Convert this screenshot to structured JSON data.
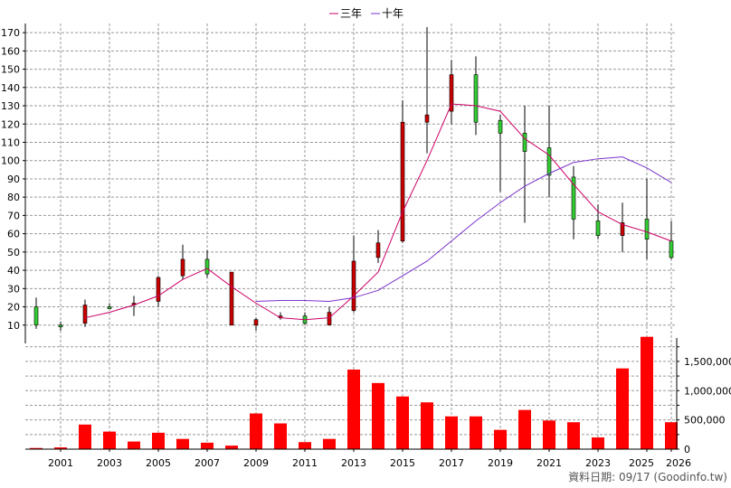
{
  "chart_data": {
    "type": "candlestick+bar",
    "legend": [
      {
        "name": "三年",
        "color": "#cc0066"
      },
      {
        "name": "十年",
        "color": "#7a33cc"
      }
    ],
    "price_axis": {
      "ylim": [
        0,
        175
      ],
      "ticks": [
        10,
        20,
        30,
        40,
        50,
        60,
        70,
        80,
        90,
        100,
        110,
        120,
        130,
        140,
        150,
        160,
        170
      ]
    },
    "volume_axis": {
      "ylim": [
        0,
        1900000
      ],
      "ticks": [
        0,
        500000,
        1000000,
        1500000
      ],
      "tick_labels": [
        "0",
        "500,000",
        "1,000,000",
        "1,500,000"
      ]
    },
    "x_axis": {
      "labels": [
        "2001",
        "2003",
        "2005",
        "2007",
        "2009",
        "2011",
        "2013",
        "2015",
        "2017",
        "2019",
        "2021",
        "2023",
        "2025",
        "2026"
      ]
    },
    "years": [
      2000,
      2001,
      2002,
      2003,
      2004,
      2005,
      2006,
      2007,
      2008,
      2009,
      2010,
      2011,
      2012,
      2013,
      2014,
      2015,
      2016,
      2017,
      2018,
      2019,
      2020,
      2021,
      2022,
      2023,
      2024,
      2025,
      2026
    ],
    "candles": [
      {
        "year": 2000,
        "open": 10,
        "close": 20,
        "high": 25,
        "low": 8
      },
      {
        "year": 2001,
        "open": 10,
        "close": 10,
        "high": 12,
        "low": 7
      },
      {
        "year": 2002,
        "open": 21,
        "close": 11,
        "high": 24,
        "low": 9
      },
      {
        "year": 2003,
        "open": 20,
        "close": 20,
        "high": 22,
        "low": 19
      },
      {
        "year": 2004,
        "open": 22,
        "close": 21,
        "high": 26,
        "low": 15
      },
      {
        "year": 2005,
        "open": 36,
        "close": 23,
        "high": 37,
        "low": 20
      },
      {
        "year": 2006,
        "open": 46,
        "close": 37,
        "high": 54,
        "low": 35
      },
      {
        "year": 2007,
        "open": 38,
        "close": 46,
        "high": 51,
        "low": 36
      },
      {
        "year": 2008,
        "open": 39,
        "close": 10,
        "high": 39,
        "low": 10
      },
      {
        "year": 2009,
        "open": 13,
        "close": 10,
        "high": 14,
        "low": 7
      },
      {
        "year": 2010,
        "open": 15,
        "close": 14,
        "high": 17,
        "low": 13
      },
      {
        "year": 2011,
        "open": 11,
        "close": 15,
        "high": 17,
        "low": 10
      },
      {
        "year": 2012,
        "open": 17,
        "close": 10,
        "high": 20,
        "low": 10
      },
      {
        "year": 2013,
        "open": 45,
        "close": 18,
        "high": 59,
        "low": 17
      },
      {
        "year": 2014,
        "open": 55,
        "close": 47,
        "high": 62,
        "low": 44
      },
      {
        "year": 2015,
        "open": 121,
        "close": 56,
        "high": 133,
        "low": 55
      },
      {
        "year": 2016,
        "open": 125,
        "close": 121,
        "high": 173,
        "low": 104
      },
      {
        "year": 2017,
        "open": 147,
        "close": 127,
        "high": 155,
        "low": 120
      },
      {
        "year": 2018,
        "open": 121,
        "close": 147,
        "high": 157,
        "low": 114
      },
      {
        "year": 2019,
        "open": 115,
        "close": 122,
        "high": 125,
        "low": 83
      },
      {
        "year": 2020,
        "open": 105,
        "close": 115,
        "high": 130,
        "low": 66
      },
      {
        "year": 2021,
        "open": 92,
        "close": 107,
        "high": 130,
        "low": 80
      },
      {
        "year": 2022,
        "open": 68,
        "close": 91,
        "high": 97,
        "low": 57
      },
      {
        "year": 2023,
        "open": 59,
        "close": 67,
        "high": 76,
        "low": 57
      },
      {
        "year": 2024,
        "open": 66,
        "close": 59,
        "high": 77,
        "low": 50
      },
      {
        "year": 2025,
        "open": 57,
        "close": 68,
        "high": 90,
        "low": 46
      },
      {
        "year": 2026,
        "open": 47,
        "close": 56,
        "high": 67,
        "low": 46
      }
    ],
    "ma_3y": [
      {
        "year": 2002,
        "value": 14
      },
      {
        "year": 2003,
        "value": 17
      },
      {
        "year": 2004,
        "value": 21
      },
      {
        "year": 2005,
        "value": 26
      },
      {
        "year": 2006,
        "value": 35
      },
      {
        "year": 2007,
        "value": 41
      },
      {
        "year": 2008,
        "value": 31
      },
      {
        "year": 2009,
        "value": 22
      },
      {
        "year": 2010,
        "value": 14
      },
      {
        "year": 2011,
        "value": 13
      },
      {
        "year": 2012,
        "value": 14
      },
      {
        "year": 2013,
        "value": 26
      },
      {
        "year": 2014,
        "value": 39
      },
      {
        "year": 2015,
        "value": 72
      },
      {
        "year": 2016,
        "value": 100
      },
      {
        "year": 2017,
        "value": 131
      },
      {
        "year": 2018,
        "value": 130
      },
      {
        "year": 2019,
        "value": 127
      },
      {
        "year": 2020,
        "value": 112
      },
      {
        "year": 2021,
        "value": 103
      },
      {
        "year": 2022,
        "value": 87
      },
      {
        "year": 2023,
        "value": 72
      },
      {
        "year": 2024,
        "value": 65
      },
      {
        "year": 2025,
        "value": 61
      },
      {
        "year": 2026,
        "value": 56
      }
    ],
    "ma_10y": [
      {
        "year": 2009,
        "value": 23
      },
      {
        "year": 2010,
        "value": 23.5
      },
      {
        "year": 2011,
        "value": 23.5
      },
      {
        "year": 2012,
        "value": 23
      },
      {
        "year": 2013,
        "value": 25
      },
      {
        "year": 2014,
        "value": 29
      },
      {
        "year": 2015,
        "value": 37
      },
      {
        "year": 2016,
        "value": 45
      },
      {
        "year": 2017,
        "value": 56
      },
      {
        "year": 2018,
        "value": 67
      },
      {
        "year": 2019,
        "value": 77
      },
      {
        "year": 2020,
        "value": 86
      },
      {
        "year": 2021,
        "value": 93
      },
      {
        "year": 2022,
        "value": 99
      },
      {
        "year": 2023,
        "value": 101
      },
      {
        "year": 2024,
        "value": 102
      },
      {
        "year": 2025,
        "value": 96
      },
      {
        "year": 2026,
        "value": 88
      }
    ],
    "volume": [
      {
        "year": 2000,
        "value": 20000
      },
      {
        "year": 2001,
        "value": 30000
      },
      {
        "year": 2002,
        "value": 420000
      },
      {
        "year": 2003,
        "value": 300000
      },
      {
        "year": 2004,
        "value": 130000
      },
      {
        "year": 2005,
        "value": 280000
      },
      {
        "year": 2006,
        "value": 175000
      },
      {
        "year": 2007,
        "value": 110000
      },
      {
        "year": 2008,
        "value": 60000
      },
      {
        "year": 2009,
        "value": 610000
      },
      {
        "year": 2010,
        "value": 440000
      },
      {
        "year": 2011,
        "value": 120000
      },
      {
        "year": 2012,
        "value": 175000
      },
      {
        "year": 2013,
        "value": 1360000
      },
      {
        "year": 2014,
        "value": 1130000
      },
      {
        "year": 2015,
        "value": 900000
      },
      {
        "year": 2016,
        "value": 800000
      },
      {
        "year": 2017,
        "value": 560000
      },
      {
        "year": 2018,
        "value": 560000
      },
      {
        "year": 2019,
        "value": 330000
      },
      {
        "year": 2020,
        "value": 670000
      },
      {
        "year": 2021,
        "value": 490000
      },
      {
        "year": 2022,
        "value": 460000
      },
      {
        "year": 2023,
        "value": 200000
      },
      {
        "year": 2024,
        "value": 1380000
      },
      {
        "year": 2025,
        "value": 1920000
      },
      {
        "year": 2026,
        "value": 460000
      }
    ],
    "colors": {
      "up": "#33cc33",
      "down": "#cc0000",
      "volume": "#ff0000",
      "grid": "#999999",
      "wick": "#000000"
    }
  },
  "footer": "資料日期: 09/17 (Goodinfo.tw)"
}
